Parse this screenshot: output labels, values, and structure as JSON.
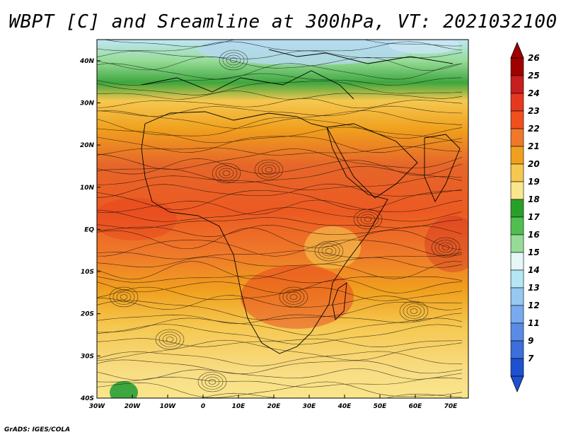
{
  "title": "WBPT [C] and Sreamline at 300hPa, VT: 2021032100",
  "footer": "GrADS: IGES/COLA",
  "map": {
    "lon_range": [
      -30,
      75
    ],
    "lat_range": [
      -40,
      45
    ],
    "x_ticks": [
      "30W",
      "20W",
      "10W",
      "0",
      "10E",
      "20E",
      "30E",
      "40E",
      "50E",
      "60E",
      "70E"
    ],
    "y_ticks": [
      "40N",
      "30N",
      "20N",
      "10N",
      "EQ",
      "10S",
      "20S",
      "30S",
      "40S"
    ]
  },
  "colorbar": {
    "labels": [
      "26",
      "25",
      "24",
      "23",
      "22",
      "21",
      "20",
      "19",
      "18",
      "17",
      "16",
      "15",
      "14",
      "13",
      "12",
      "11",
      "9",
      "7"
    ],
    "colors": [
      "#a00000",
      "#c81e1e",
      "#e6381e",
      "#f0501e",
      "#f07828",
      "#f0a01e",
      "#f5c850",
      "#fae68c",
      "#28a028",
      "#50be50",
      "#96dc96",
      "#e6f5f5",
      "#b4e6f5",
      "#96c8f0",
      "#78aaf0",
      "#5a8ce6",
      "#3c6edc",
      "#1e50d2"
    ]
  }
}
